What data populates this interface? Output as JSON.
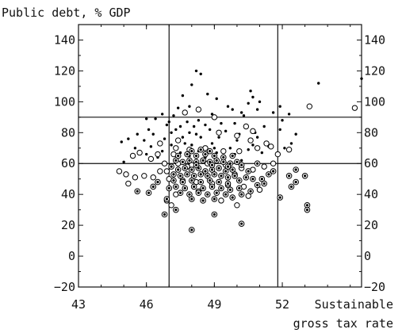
{
  "chart_data": {
    "type": "scatter",
    "title": "",
    "ylabel": "Public debt, % GDP",
    "xlabel": [
      "Sustainable",
      "gross tax rate"
    ],
    "xlim": [
      43,
      55.5
    ],
    "ylim": [
      -20,
      150
    ],
    "x_ticks": [
      43,
      46,
      49,
      52
    ],
    "y_ticks": [
      -20,
      0,
      20,
      40,
      60,
      80,
      100,
      120,
      140
    ],
    "x_ticks_right_axis_minor": [],
    "grid": false,
    "reference_lines": {
      "x": [
        47.0,
        51.8
      ],
      "y": [
        60,
        90
      ]
    },
    "marker_styles": [
      "small-dot",
      "hollow-circle",
      "circled-dot"
    ],
    "series": [
      {
        "marker": "small-dot",
        "points": [
          [
            47.4,
            96
          ],
          [
            47.9,
            97
          ],
          [
            48.0,
            111
          ],
          [
            48.2,
            120
          ],
          [
            48.4,
            118
          ],
          [
            47.6,
            104
          ],
          [
            48.7,
            105
          ],
          [
            49.1,
            102
          ],
          [
            50.6,
            107
          ],
          [
            50.7,
            103
          ],
          [
            50.9,
            95
          ],
          [
            50.2,
            93
          ],
          [
            50.3,
            91
          ],
          [
            51.6,
            93
          ],
          [
            51.9,
            97
          ],
          [
            52.3,
            92
          ],
          [
            53.6,
            112
          ],
          [
            55.5,
            115
          ],
          [
            51.0,
            100
          ],
          [
            50.5,
            99
          ],
          [
            47.2,
            91
          ],
          [
            46.7,
            92
          ],
          [
            46.4,
            89
          ],
          [
            46.0,
            89
          ],
          [
            49.6,
            97
          ],
          [
            49.8,
            95
          ],
          [
            48.9,
            92
          ],
          [
            48.3,
            88
          ],
          [
            47.8,
            87
          ],
          [
            47.0,
            87
          ],
          [
            46.9,
            85
          ],
          [
            47.5,
            84
          ],
          [
            48.1,
            84
          ],
          [
            48.6,
            85
          ],
          [
            49.3,
            86
          ],
          [
            49.9,
            86
          ],
          [
            50.4,
            85
          ],
          [
            51.2,
            84
          ],
          [
            51.9,
            82
          ],
          [
            52.6,
            79
          ],
          [
            52.1,
            70
          ],
          [
            50.9,
            77
          ],
          [
            50.1,
            79
          ],
          [
            49.5,
            81
          ],
          [
            48.8,
            82
          ],
          [
            47.9,
            80
          ],
          [
            47.1,
            80
          ],
          [
            46.3,
            79
          ],
          [
            45.6,
            79
          ],
          [
            45.2,
            76
          ],
          [
            44.9,
            74
          ],
          [
            45.9,
            75
          ],
          [
            46.8,
            76
          ],
          [
            47.6,
            77
          ],
          [
            48.4,
            77
          ],
          [
            49.2,
            77
          ],
          [
            50.0,
            75
          ],
          [
            50.7,
            72
          ],
          [
            51.4,
            71
          ],
          [
            52.4,
            73
          ],
          [
            45.5,
            70
          ],
          [
            46.2,
            71
          ],
          [
            47.1,
            72
          ],
          [
            48.0,
            72
          ],
          [
            48.9,
            73
          ],
          [
            49.7,
            70
          ],
          [
            50.5,
            69
          ],
          [
            51.1,
            67
          ],
          [
            46.7,
            68
          ],
          [
            47.5,
            67
          ],
          [
            48.3,
            68
          ],
          [
            49.1,
            67
          ],
          [
            49.9,
            66
          ],
          [
            46.0,
            66
          ],
          [
            47.9,
            65
          ],
          [
            48.6,
            64
          ],
          [
            49.4,
            63
          ],
          [
            50.2,
            62
          ],
          [
            47.3,
            63
          ],
          [
            46.5,
            64
          ],
          [
            45.0,
            61
          ],
          [
            50.8,
            80
          ],
          [
            52.0,
            88
          ],
          [
            49.0,
            70
          ],
          [
            48.2,
            79
          ],
          [
            47.7,
            73
          ],
          [
            46.1,
            82
          ],
          [
            47.3,
            82
          ]
        ]
      },
      {
        "marker": "hollow-circle",
        "points": [
          [
            47.7,
            93
          ],
          [
            48.3,
            95
          ],
          [
            49.2,
            80
          ],
          [
            50.4,
            84
          ],
          [
            50.7,
            81
          ],
          [
            50.0,
            78
          ],
          [
            51.3,
            73
          ],
          [
            52.3,
            69
          ],
          [
            53.2,
            97
          ],
          [
            55.2,
            96
          ],
          [
            47.4,
            75
          ],
          [
            46.6,
            73
          ],
          [
            47.3,
            70
          ],
          [
            47.9,
            69
          ],
          [
            48.6,
            70
          ],
          [
            49.4,
            68
          ],
          [
            50.1,
            68
          ],
          [
            50.9,
            70
          ],
          [
            51.5,
            71
          ],
          [
            46.5,
            66
          ],
          [
            46.2,
            63
          ],
          [
            45.7,
            67
          ],
          [
            45.4,
            65
          ],
          [
            46.8,
            60
          ],
          [
            47.4,
            60
          ],
          [
            48.0,
            59
          ],
          [
            48.7,
            60
          ],
          [
            49.5,
            59
          ],
          [
            50.2,
            57
          ],
          [
            50.7,
            56
          ],
          [
            51.2,
            58
          ],
          [
            51.6,
            60
          ],
          [
            44.8,
            55
          ],
          [
            45.1,
            53
          ],
          [
            45.5,
            51
          ],
          [
            45.9,
            52
          ],
          [
            46.3,
            51
          ],
          [
            46.6,
            55
          ],
          [
            45.2,
            47
          ],
          [
            47.0,
            50
          ],
          [
            47.6,
            49
          ],
          [
            48.2,
            48
          ],
          [
            48.9,
            47
          ],
          [
            49.6,
            46
          ],
          [
            50.3,
            45
          ],
          [
            47.3,
            40
          ],
          [
            46.9,
            36
          ],
          [
            47.1,
            33
          ],
          [
            48.3,
            42
          ],
          [
            49.3,
            36
          ],
          [
            50.0,
            33
          ],
          [
            50.5,
            39
          ],
          [
            51.0,
            43
          ],
          [
            47.8,
            58
          ],
          [
            49.9,
            53
          ],
          [
            51.8,
            66
          ],
          [
            47.2,
            66
          ],
          [
            46.9,
            55
          ],
          [
            50.6,
            75
          ],
          [
            49.0,
            90
          ]
        ]
      },
      {
        "marker": "circled-dot",
        "points": [
          [
            47.1,
            58
          ],
          [
            47.4,
            56
          ],
          [
            47.7,
            57
          ],
          [
            48.0,
            56
          ],
          [
            48.3,
            57
          ],
          [
            48.6,
            55
          ],
          [
            48.9,
            56
          ],
          [
            49.2,
            57
          ],
          [
            49.5,
            55
          ],
          [
            49.8,
            56
          ],
          [
            47.2,
            53
          ],
          [
            47.5,
            52
          ],
          [
            47.8,
            53
          ],
          [
            48.1,
            52
          ],
          [
            48.4,
            53
          ],
          [
            48.7,
            52
          ],
          [
            49.0,
            53
          ],
          [
            49.3,
            52
          ],
          [
            49.6,
            51
          ],
          [
            49.9,
            52
          ],
          [
            47.3,
            62
          ],
          [
            47.6,
            61
          ],
          [
            47.9,
            62
          ],
          [
            48.2,
            61
          ],
          [
            48.5,
            62
          ],
          [
            48.8,
            61
          ],
          [
            49.1,
            62
          ],
          [
            49.4,
            61
          ],
          [
            49.7,
            60
          ],
          [
            50.0,
            61
          ],
          [
            47.4,
            65
          ],
          [
            47.8,
            66
          ],
          [
            48.2,
            65
          ],
          [
            48.6,
            66
          ],
          [
            49.0,
            65
          ],
          [
            49.4,
            64
          ],
          [
            49.8,
            65
          ],
          [
            48.0,
            68
          ],
          [
            48.4,
            69
          ],
          [
            48.8,
            68
          ],
          [
            47.2,
            49
          ],
          [
            47.6,
            48
          ],
          [
            48.0,
            49
          ],
          [
            48.4,
            48
          ],
          [
            48.8,
            49
          ],
          [
            49.2,
            48
          ],
          [
            49.6,
            47
          ],
          [
            50.1,
            49
          ],
          [
            50.4,
            51
          ],
          [
            50.7,
            50
          ],
          [
            47.3,
            45
          ],
          [
            47.7,
            44
          ],
          [
            48.1,
            45
          ],
          [
            48.5,
            44
          ],
          [
            48.9,
            45
          ],
          [
            49.3,
            44
          ],
          [
            49.7,
            43
          ],
          [
            50.1,
            44
          ],
          [
            47.5,
            41
          ],
          [
            47.9,
            40
          ],
          [
            48.3,
            41
          ],
          [
            48.7,
            40
          ],
          [
            49.1,
            41
          ],
          [
            49.5,
            40
          ],
          [
            48.0,
            37
          ],
          [
            48.5,
            36
          ],
          [
            49.0,
            37
          ],
          [
            49.8,
            38
          ],
          [
            50.2,
            40
          ],
          [
            50.6,
            42
          ],
          [
            51.1,
            50
          ],
          [
            51.4,
            53
          ],
          [
            51.2,
            47
          ],
          [
            50.9,
            46
          ],
          [
            50.5,
            55
          ],
          [
            50.2,
            59
          ],
          [
            46.1,
            41
          ],
          [
            46.5,
            48
          ],
          [
            46.3,
            45
          ],
          [
            45.6,
            42
          ],
          [
            46.8,
            27
          ],
          [
            47.3,
            30
          ],
          [
            49.0,
            27
          ],
          [
            50.2,
            21
          ],
          [
            48.0,
            17
          ],
          [
            51.9,
            38
          ],
          [
            52.4,
            45
          ],
          [
            52.6,
            48
          ],
          [
            53.0,
            52
          ],
          [
            53.1,
            33
          ],
          [
            53.1,
            30
          ],
          [
            52.6,
            56
          ],
          [
            52.3,
            52
          ],
          [
            46.9,
            37
          ],
          [
            47.0,
            44
          ],
          [
            51.6,
            55
          ],
          [
            50.9,
            60
          ],
          [
            48.2,
            59
          ],
          [
            48.9,
            59
          ],
          [
            49.6,
            58
          ]
        ]
      }
    ]
  }
}
